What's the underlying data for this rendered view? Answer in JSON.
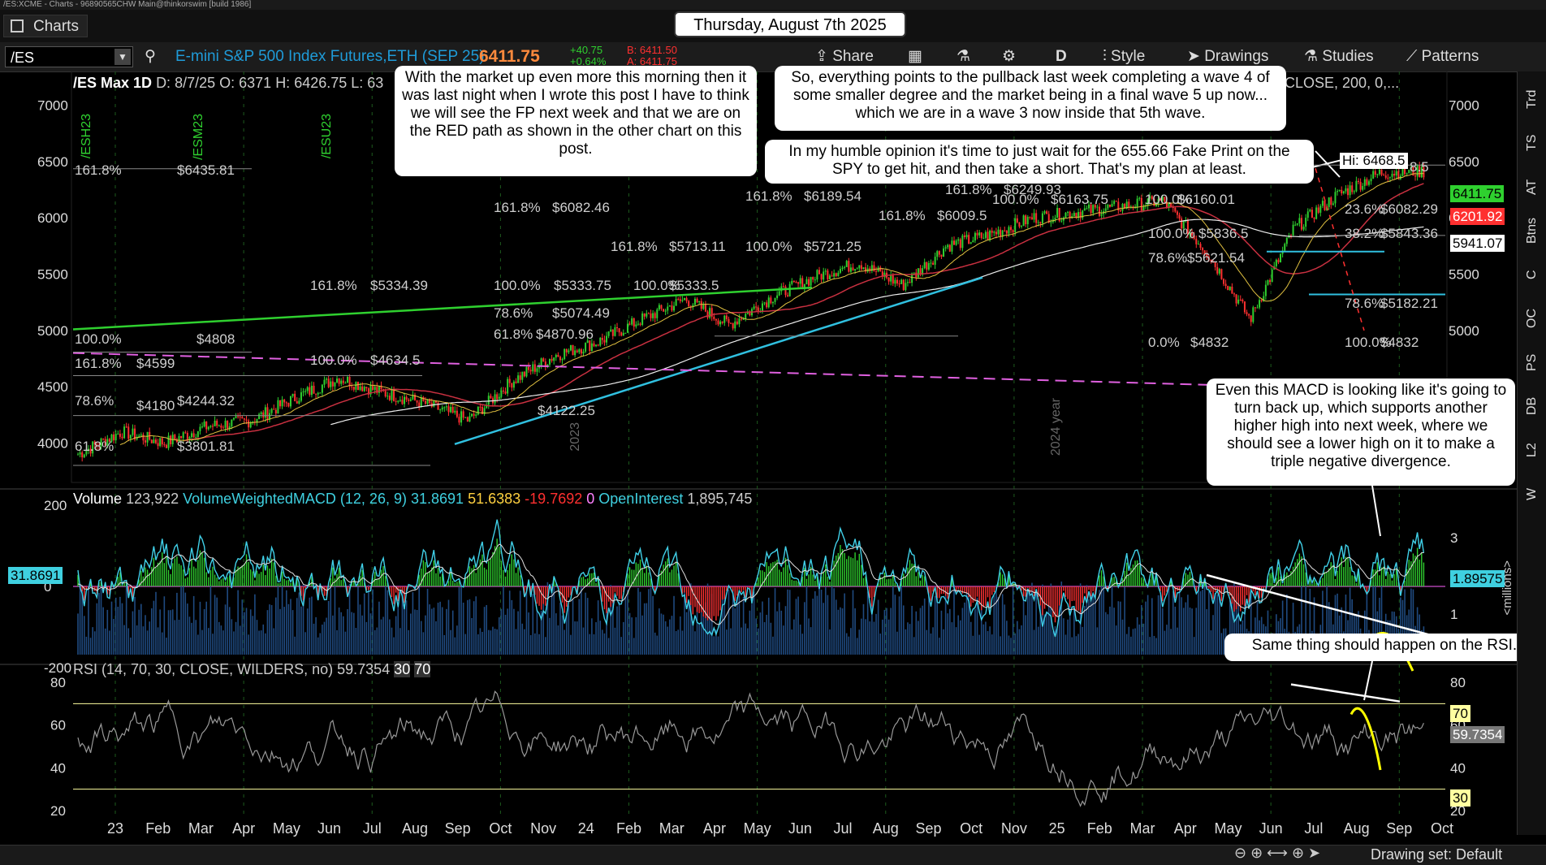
{
  "window": {
    "title": "/ES:XCME - Charts - 96890565CHW Main@thinkorswim [build 1986]",
    "tab_label": "Charts",
    "date_banner": "Thursday, August 7th 2025"
  },
  "toolbar": {
    "symbol": "/ES",
    "instrument": "E-mini S&P 500 Index Futures,ETH (SEP 25)",
    "last": "6411.75",
    "change": "+40.75",
    "change_pct": "+0.64%",
    "bid": "B: 6411.50",
    "ask": "A: 6411.75",
    "buttons": [
      "Share",
      "D",
      "Style",
      "Drawings",
      "Studies",
      "Patterns"
    ]
  },
  "infobar": {
    "symbol": "/ES Max 1D",
    "date": "D: 8/7/25",
    "open": "O: 6371",
    "high": "H: 6426.75",
    "low": "L: 63",
    "sma_label": "vg (CLOSE, 200, 0,..."
  },
  "callouts": {
    "c1": "With the market up even more this morning then it was last night when I wrote this post I have to think we will see the FP next week and that we are on the RED path as shown in the other chart on this post.",
    "c2": "So, everything points to the pullback last week completing a wave 4 of some smaller degree and the market being in a final wave 5 up now... which we are in a wave 3 now inside that 5th wave.",
    "c3": "In my humble opinion it's time to just wait for the 655.66 Fake Print on the SPY to get hit, and then take a short.  That's my plan at least.",
    "c4": "Even this MACD is looking like it's going to turn back up, which supports another higher high into next week, where we should see a lower high on it to make a triple negative divergence.",
    "c5": "Same thing should happen on the RSI."
  },
  "fib_labels": [
    {
      "t": "161.8%",
      "k": "a"
    },
    {
      "t": "$6435.81"
    },
    {
      "t": "161.8%"
    },
    {
      "t": "$6082.46"
    },
    {
      "t": "161.8%"
    },
    {
      "t": "$6189.54"
    },
    {
      "t": "161.8%"
    },
    {
      "t": "$5713.11"
    },
    {
      "t": "100.0%"
    },
    {
      "t": "$5721.25"
    },
    {
      "t": "161.8%"
    },
    {
      "t": "$5334.39"
    },
    {
      "t": "100.0%"
    },
    {
      "t": "$5333.75"
    },
    {
      "t": "100.0%"
    },
    {
      "t": "$5333.5"
    },
    {
      "t": "78.6%"
    },
    {
      "t": "$5074.49"
    },
    {
      "t": "61.8%"
    },
    {
      "t": "$4870.96"
    },
    {
      "t": "100.0%"
    },
    {
      "t": "$4808"
    },
    {
      "t": "161.8%"
    },
    {
      "t": "$4599"
    },
    {
      "t": "100.0%"
    },
    {
      "t": "$4634.5"
    },
    {
      "t": "78.6%"
    },
    {
      "t": "$4244.32"
    },
    {
      "t": "$4180"
    },
    {
      "t": "61.8%"
    },
    {
      "t": "$3801.81"
    },
    {
      "t": "$4122.25"
    },
    {
      "t": "161.8%"
    },
    {
      "t": "100.0%"
    },
    {
      "t": "$6163.75"
    },
    {
      "t": "100.0%"
    },
    {
      "t": "$6160.01"
    },
    {
      "t": "$6249.93"
    },
    {
      "t": "161.8%"
    },
    {
      "t": "$6009.5"
    },
    {
      "t": "100.0%"
    },
    {
      "t": "$5836.5"
    },
    {
      "t": "78.6%"
    },
    {
      "t": "$5621.54"
    },
    {
      "t": "0.0%"
    },
    {
      "t": "$4832"
    },
    {
      "t": "23.6%"
    },
    {
      "t": "$6082.29"
    },
    {
      "t": "38.2%"
    },
    {
      "t": "$5843.36"
    },
    {
      "t": "78.6%"
    },
    {
      "t": "$5182.21"
    },
    {
      "t": "100.0%"
    },
    {
      "t": "$4832"
    },
    {
      "t": "Hi: 6468.5"
    },
    {
      "t": "8.5"
    }
  ],
  "price_badges": {
    "last": "6411.75",
    "ma1": "6201.92",
    "ma2": "5941.07"
  },
  "year_labels": [
    "2023",
    "2024 year"
  ],
  "contract_labels": [
    "/ESH23",
    "/ESM23",
    "/ESU23"
  ],
  "chart_data": [
    {
      "type": "candlestick",
      "title": "/ES Max 1D",
      "y_ticks": [
        4000,
        4500,
        5000,
        5500,
        6000,
        6500,
        7000
      ],
      "ylim": [
        3650,
        7300
      ],
      "x_ticks": [
        "23",
        "Feb",
        "Mar",
        "Apr",
        "May",
        "Jun",
        "Jul",
        "Aug",
        "Sep",
        "Oct",
        "Nov",
        "24",
        "Feb",
        "Mar",
        "Apr",
        "May",
        "Jun",
        "Jul",
        "Aug",
        "Sep",
        "Oct",
        "Nov",
        "25",
        "Feb",
        "Mar",
        "Apr",
        "May",
        "Jun",
        "Jul",
        "Aug",
        "Sep",
        "Oct"
      ],
      "close_path": [
        [
          "2023-01",
          3900
        ],
        [
          "2023-02",
          4100
        ],
        [
          "2023-03",
          4000
        ],
        [
          "2023-04",
          4150
        ],
        [
          "2023-05",
          4200
        ],
        [
          "2023-06",
          4400
        ],
        [
          "2023-07",
          4580
        ],
        [
          "2023-08",
          4450
        ],
        [
          "2023-09",
          4350
        ],
        [
          "2023-10",
          4200
        ],
        [
          "2023-11",
          4550
        ],
        [
          "2023-12",
          4780
        ],
        [
          "2024-01",
          4900
        ],
        [
          "2024-02",
          5100
        ],
        [
          "2024-03",
          5280
        ],
        [
          "2024-04",
          5050
        ],
        [
          "2024-05",
          5300
        ],
        [
          "2024-06",
          5480
        ],
        [
          "2024-07",
          5600
        ],
        [
          "2024-08",
          5400
        ],
        [
          "2024-09",
          5750
        ],
        [
          "2024-10",
          5850
        ],
        [
          "2024-11",
          6000
        ],
        [
          "2024-12",
          6050
        ],
        [
          "2025-01",
          6100
        ],
        [
          "2025-02",
          6150
        ],
        [
          "2025-03",
          5700
        ],
        [
          "2025-04",
          5100
        ],
        [
          "2025-05",
          5900
        ],
        [
          "2025-06",
          6200
        ],
        [
          "2025-07",
          6400
        ],
        [
          "2025-08",
          6411.75
        ]
      ]
    },
    {
      "type": "line",
      "title": "VolumeWeightedMACD (12, 26, 9)",
      "labels": {
        "volume": "Volume",
        "volume_val": "123,922",
        "macd": "VolumeWeightedMACD (12, 26, 9)",
        "v1": "31.8691",
        "v2": "51.6383",
        "v3": "-19.7692",
        "v4": "0",
        "oi": "OpenInterest",
        "oi_val": "1,895,745"
      },
      "y_ticks": [
        -200,
        0,
        200
      ],
      "y2_ticks": [
        1,
        3
      ],
      "y2_label": "<millions>",
      "current": "31.8691",
      "oi_current": "1.89575"
    },
    {
      "type": "line",
      "title": "RSI (14, 70, 30, CLOSE, WILDERS, no)",
      "labels": {
        "rsi": "RSI (14, 70, 30, CLOSE, WILDERS, no)",
        "val": "59.7354",
        "ob": "30",
        "os": "70"
      },
      "y_ticks": [
        20,
        40,
        60,
        80
      ],
      "levels": [
        30,
        70
      ],
      "current": "59.7354",
      "badges": [
        "70",
        "59.7354",
        "30"
      ]
    }
  ],
  "right_tabs": [
    "Trd",
    "TS",
    "AT",
    "Btns",
    "C",
    "OC",
    "PS",
    "DB",
    "L2",
    "W"
  ],
  "bottom": {
    "drawing_set": "Drawing set: Default"
  },
  "colors": {
    "accent": "#1f9bd8",
    "price": "#ff8a3d",
    "up": "#2fd02f",
    "down": "#ff3030"
  }
}
